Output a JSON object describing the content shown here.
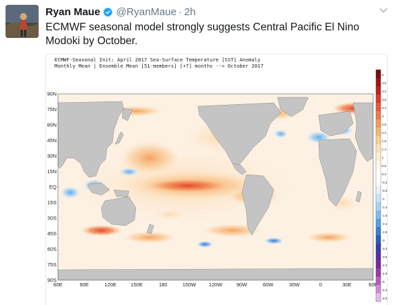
{
  "tweet": {
    "author_name": "Ryan Maue",
    "author_handle": "@RyanMaue",
    "separator": "·",
    "time": "2h",
    "verified": true,
    "text": "ECMWF seasonal model strongly suggests Central Pacific El Nino Modoki by October."
  },
  "icons": {
    "verified": "verified-badge-icon",
    "menu": "chevron-down-icon"
  },
  "colors": {
    "verified": "#1da1f2",
    "land": "#c4c4c4",
    "ocean_neutral": "#ffffff"
  },
  "chart": {
    "title_line1": "ECMWF-Seasonal Init: April 2017 Sea-Surface Temperature [SST] Anomaly",
    "title_line2": "Monthly Mean | Ensemble Mean [51-members] [+7] months --> October 2017",
    "lat_labels": [
      "90N",
      "75N",
      "60N",
      "45N",
      "30N",
      "15N",
      "EQ",
      "15S",
      "30S",
      "45S",
      "60S",
      "75S",
      "90S"
    ],
    "lon_labels": [
      "60E",
      "90E",
      "120E",
      "150E",
      "180",
      "150W",
      "120W",
      "90W",
      "60W",
      "30W",
      "0",
      "30E",
      "60E"
    ],
    "colorbar_labels": [
      "5",
      "4.6",
      "4.2",
      "3.8",
      "3.4",
      "3",
      "2.6",
      "2.2",
      "1.8",
      "1.4",
      "1",
      "0.6",
      "0.2",
      "-0.2",
      "-0.6",
      "-1",
      "-1.4",
      "-1.8",
      "-2.2",
      "-2.6",
      "-3",
      "-3.4",
      "-3.8",
      "-4.2",
      "-4.6",
      "-5",
      "-5.4",
      "-5.8"
    ]
  }
}
